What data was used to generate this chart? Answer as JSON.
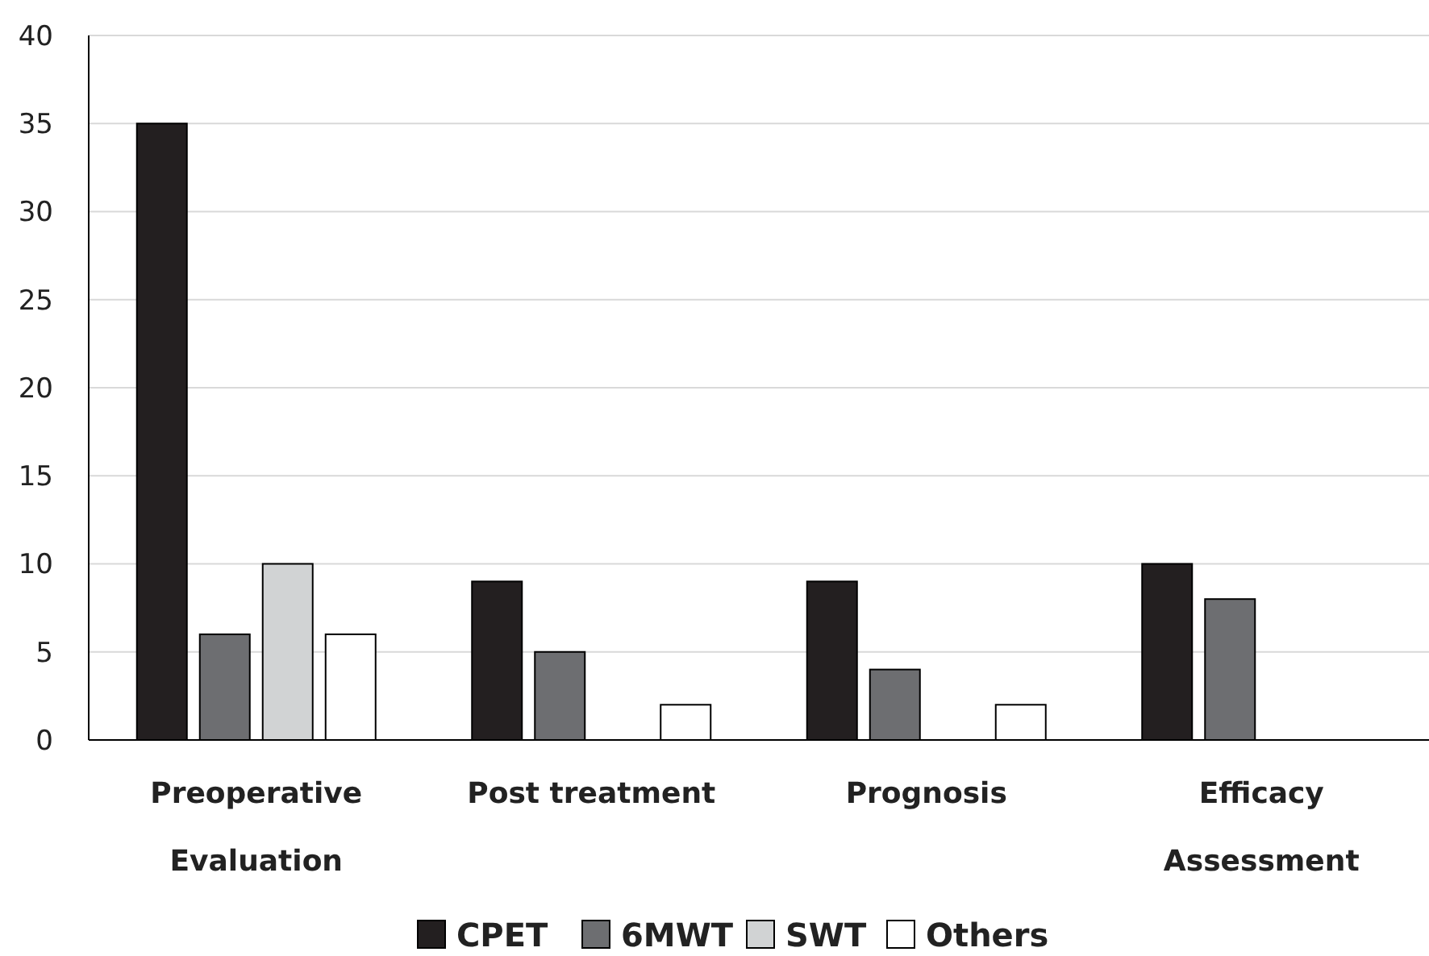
{
  "chart_data": {
    "type": "bar",
    "categories": [
      "Preoperative Evaluation",
      "Post treatment",
      "Prognosis",
      "Efficacy Assessment"
    ],
    "series": [
      {
        "name": "CPET",
        "color": "#231f20",
        "values": [
          35,
          9,
          9,
          10
        ]
      },
      {
        "name": "6MWT",
        "color": "#6d6e71",
        "values": [
          6,
          5,
          4,
          8
        ]
      },
      {
        "name": "SWT",
        "color": "#d1d3d4",
        "values": [
          10,
          null,
          null,
          null
        ]
      },
      {
        "name": "Others",
        "color": "#ffffff",
        "values": [
          6,
          2,
          2,
          null
        ]
      }
    ],
    "ylim": [
      0,
      40
    ],
    "yticks": [
      0,
      5,
      10,
      15,
      20,
      25,
      30,
      35,
      40
    ],
    "grid": "y",
    "legend": "bottom"
  }
}
